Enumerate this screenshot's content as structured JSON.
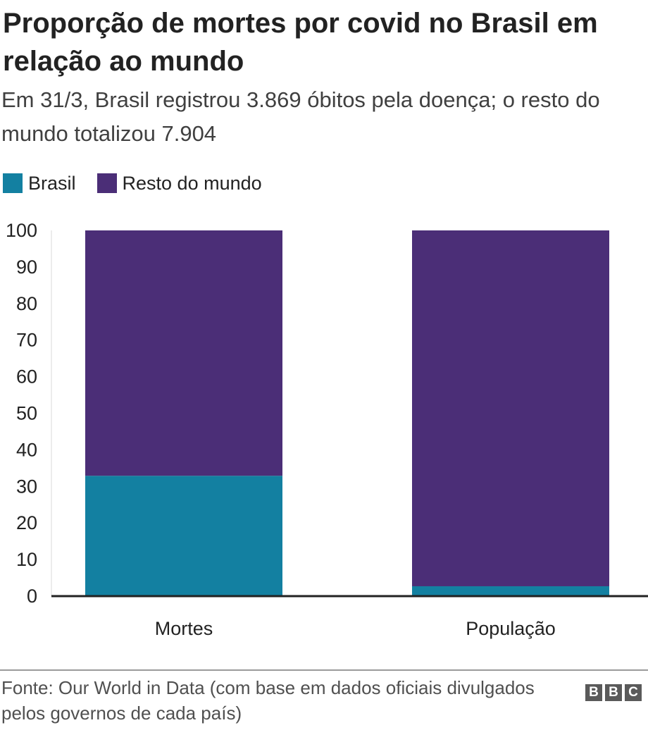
{
  "header": {
    "title": "Proporção de mortes por covid no Brasil em relação ao mundo",
    "subtitle": "Em 31/3, Brasil registrou 3.869 óbitos pela doença; o resto do mundo totalizou 7.904"
  },
  "footer": {
    "source": "Fonte: Our World in Data (com base em dados oficiais divulgados pelos governos de cada país)",
    "logo_letters": [
      "B",
      "B",
      "C"
    ]
  },
  "chart_data": {
    "type": "bar",
    "stacked": true,
    "categories": [
      "Mortes",
      "População"
    ],
    "series": [
      {
        "name": "Brasil",
        "color": "#1380a1",
        "values": [
          32.9,
          2.7
        ]
      },
      {
        "name": "Resto do mundo",
        "color": "#4b2e77",
        "values": [
          67.1,
          97.3
        ]
      }
    ],
    "ylim": [
      0,
      100
    ],
    "yticks": [
      0,
      10,
      20,
      30,
      40,
      50,
      60,
      70,
      80,
      90,
      100
    ],
    "legend_position": "top-left",
    "grid": false
  }
}
